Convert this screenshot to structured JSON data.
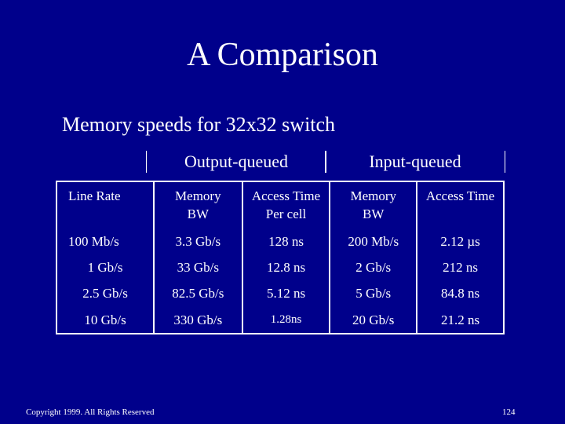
{
  "slide": {
    "title": "A Comparison",
    "subtitle": "Memory speeds for 32x32 switch"
  },
  "groups": {
    "output": "Output-queued",
    "input": "Input-queued"
  },
  "table": {
    "header": {
      "line_rate": "Line Rate",
      "out_memory_bw": [
        "Memory",
        "BW"
      ],
      "out_access_time": [
        "Access Time",
        "Per cell"
      ],
      "in_memory_bw": [
        "Memory",
        "BW"
      ],
      "in_access_time": "Access Time"
    },
    "rows": [
      {
        "line_rate": "100 Mb/s",
        "out_bw": "3.3 Gb/s",
        "out_time": "128 ns",
        "in_bw": "200 Mb/s",
        "in_time": "2.12 µs"
      },
      {
        "line_rate": "1 Gb/s",
        "out_bw": "33 Gb/s",
        "out_time": "12.8 ns",
        "in_bw": "2 Gb/s",
        "in_time": "212 ns"
      },
      {
        "line_rate": "2.5 Gb/s",
        "out_bw": "82.5 Gb/s",
        "out_time": "5.12 ns",
        "in_bw": "5 Gb/s",
        "in_time": "84.8 ns"
      },
      {
        "line_rate": "10 Gb/s",
        "out_bw": "330 Gb/s",
        "out_time": "1.28ns",
        "in_bw": "20 Gb/s",
        "in_time": "21.2 ns"
      }
    ]
  },
  "footer": {
    "copyright": "Copyright 1999. All Rights Reserved",
    "page_number": "124"
  }
}
